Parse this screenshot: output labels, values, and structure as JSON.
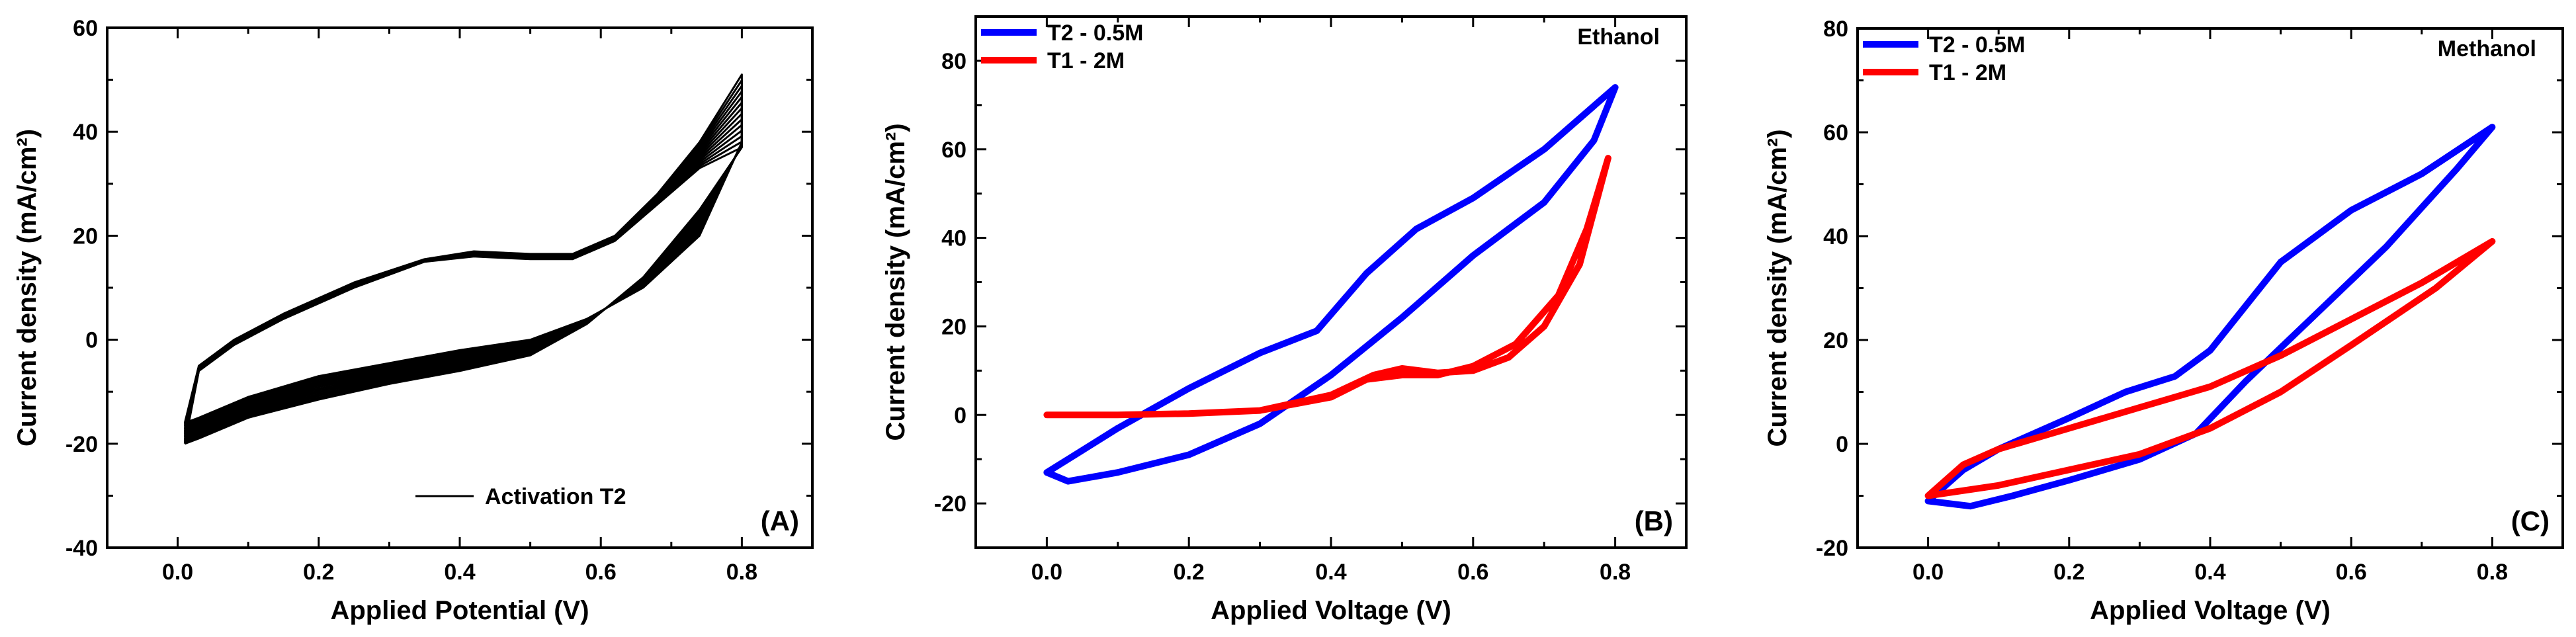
{
  "chart_data": [
    {
      "type": "line",
      "panel": "(A)",
      "xlabel": "Applied Potential (V)",
      "ylabel": "Current density (mA/cm²)",
      "xlim": [
        -0.1,
        0.9
      ],
      "ylim": [
        -40,
        60
      ],
      "xticks": [
        0.0,
        0.2,
        0.4,
        0.6,
        0.8
      ],
      "yticks": [
        -40,
        -20,
        0,
        20,
        40,
        60
      ],
      "legend": {
        "position": "bottom-right"
      },
      "series": [
        {
          "name": "Activation T2",
          "color": "#000000",
          "cycles": 14,
          "x": [
            0.01,
            0.03,
            0.08,
            0.15,
            0.25,
            0.35,
            0.42,
            0.5,
            0.56,
            0.62,
            0.68,
            0.74,
            0.8,
            0.8,
            0.74,
            0.66,
            0.58,
            0.5,
            0.4,
            0.3,
            0.2,
            0.1,
            0.03,
            0.01
          ],
          "y_first": [
            -16,
            -5,
            0,
            5,
            11,
            15.5,
            17,
            16.5,
            16.5,
            20,
            28,
            38,
            51,
            38,
            20,
            10,
            4,
            0,
            -2,
            -4.5,
            -7,
            -11,
            -15,
            -16
          ],
          "y_last": [
            -20,
            -6,
            -1,
            4,
            10,
            15,
            16,
            15.5,
            15.5,
            19,
            26,
            33,
            37,
            37,
            25,
            12,
            3,
            -3,
            -6,
            -8.5,
            -11.5,
            -15,
            -19,
            -20
          ]
        }
      ]
    },
    {
      "type": "line",
      "panel": "(B)",
      "annotation": "Ethanol",
      "xlabel": "Applied Voltage (V)",
      "ylabel": "Current density (mA/cm²)",
      "xlim": [
        -0.1,
        0.9
      ],
      "ylim": [
        -30,
        90
      ],
      "xticks": [
        0.0,
        0.2,
        0.4,
        0.6,
        0.8
      ],
      "yticks": [
        -20,
        0,
        20,
        40,
        60,
        80
      ],
      "legend": {
        "position": "top-left"
      },
      "series": [
        {
          "name": "T2 - 0.5M",
          "color": "#0000ff",
          "x": [
            0.0,
            0.04,
            0.1,
            0.2,
            0.3,
            0.38,
            0.45,
            0.52,
            0.6,
            0.7,
            0.8,
            0.77,
            0.7,
            0.6,
            0.5,
            0.4,
            0.3,
            0.2,
            0.1,
            0.03,
            0.0
          ],
          "y": [
            -13,
            -9,
            -3,
            6,
            14,
            19,
            32,
            42,
            49,
            60,
            74,
            62,
            48,
            36,
            22,
            9,
            -2,
            -9,
            -13,
            -15,
            -13
          ]
        },
        {
          "name": "T1 - 2M",
          "color": "#ff0000",
          "x": [
            0.0,
            0.1,
            0.2,
            0.3,
            0.4,
            0.46,
            0.5,
            0.55,
            0.6,
            0.65,
            0.7,
            0.75,
            0.79,
            0.76,
            0.72,
            0.66,
            0.6,
            0.55,
            0.5,
            0.45,
            0.4,
            0.3,
            0.2
          ],
          "y": [
            0,
            0,
            0.3,
            1,
            4.5,
            9,
            10.5,
            9.5,
            10,
            13,
            20,
            34,
            58,
            42,
            27,
            16,
            11,
            9,
            9,
            8,
            4,
            1,
            0.3
          ]
        }
      ]
    },
    {
      "type": "line",
      "panel": "(C)",
      "annotation": "Methanol",
      "xlabel": "Applied Voltage (V)",
      "ylabel": "Current density (mA/cm²)",
      "xlim": [
        -0.1,
        0.9
      ],
      "ylim": [
        -20,
        80
      ],
      "xticks": [
        0.0,
        0.2,
        0.4,
        0.6,
        0.8
      ],
      "yticks": [
        -20,
        0,
        20,
        40,
        60,
        80
      ],
      "legend": {
        "position": "top-left"
      },
      "series": [
        {
          "name": "T2 - 0.5M",
          "color": "#0000ff",
          "x": [
            0.0,
            0.05,
            0.1,
            0.2,
            0.28,
            0.35,
            0.4,
            0.5,
            0.6,
            0.7,
            0.8,
            0.75,
            0.65,
            0.55,
            0.45,
            0.38,
            0.3,
            0.2,
            0.12,
            0.06,
            0.0
          ],
          "y": [
            -11,
            -5,
            -1,
            5,
            10,
            13,
            18,
            35,
            45,
            52,
            61,
            53,
            38,
            25,
            12,
            2,
            -3,
            -7,
            -10,
            -12,
            -11
          ]
        },
        {
          "name": "T1 - 2M",
          "color": "#ff0000",
          "x": [
            0.0,
            0.05,
            0.1,
            0.2,
            0.3,
            0.4,
            0.5,
            0.6,
            0.7,
            0.8,
            0.72,
            0.6,
            0.5,
            0.4,
            0.3,
            0.2,
            0.1,
            0.0
          ],
          "y": [
            -10,
            -4,
            -1,
            3,
            7,
            11,
            17,
            24,
            31,
            39,
            30,
            19,
            10,
            3,
            -2,
            -5,
            -8,
            -10
          ]
        }
      ]
    }
  ]
}
